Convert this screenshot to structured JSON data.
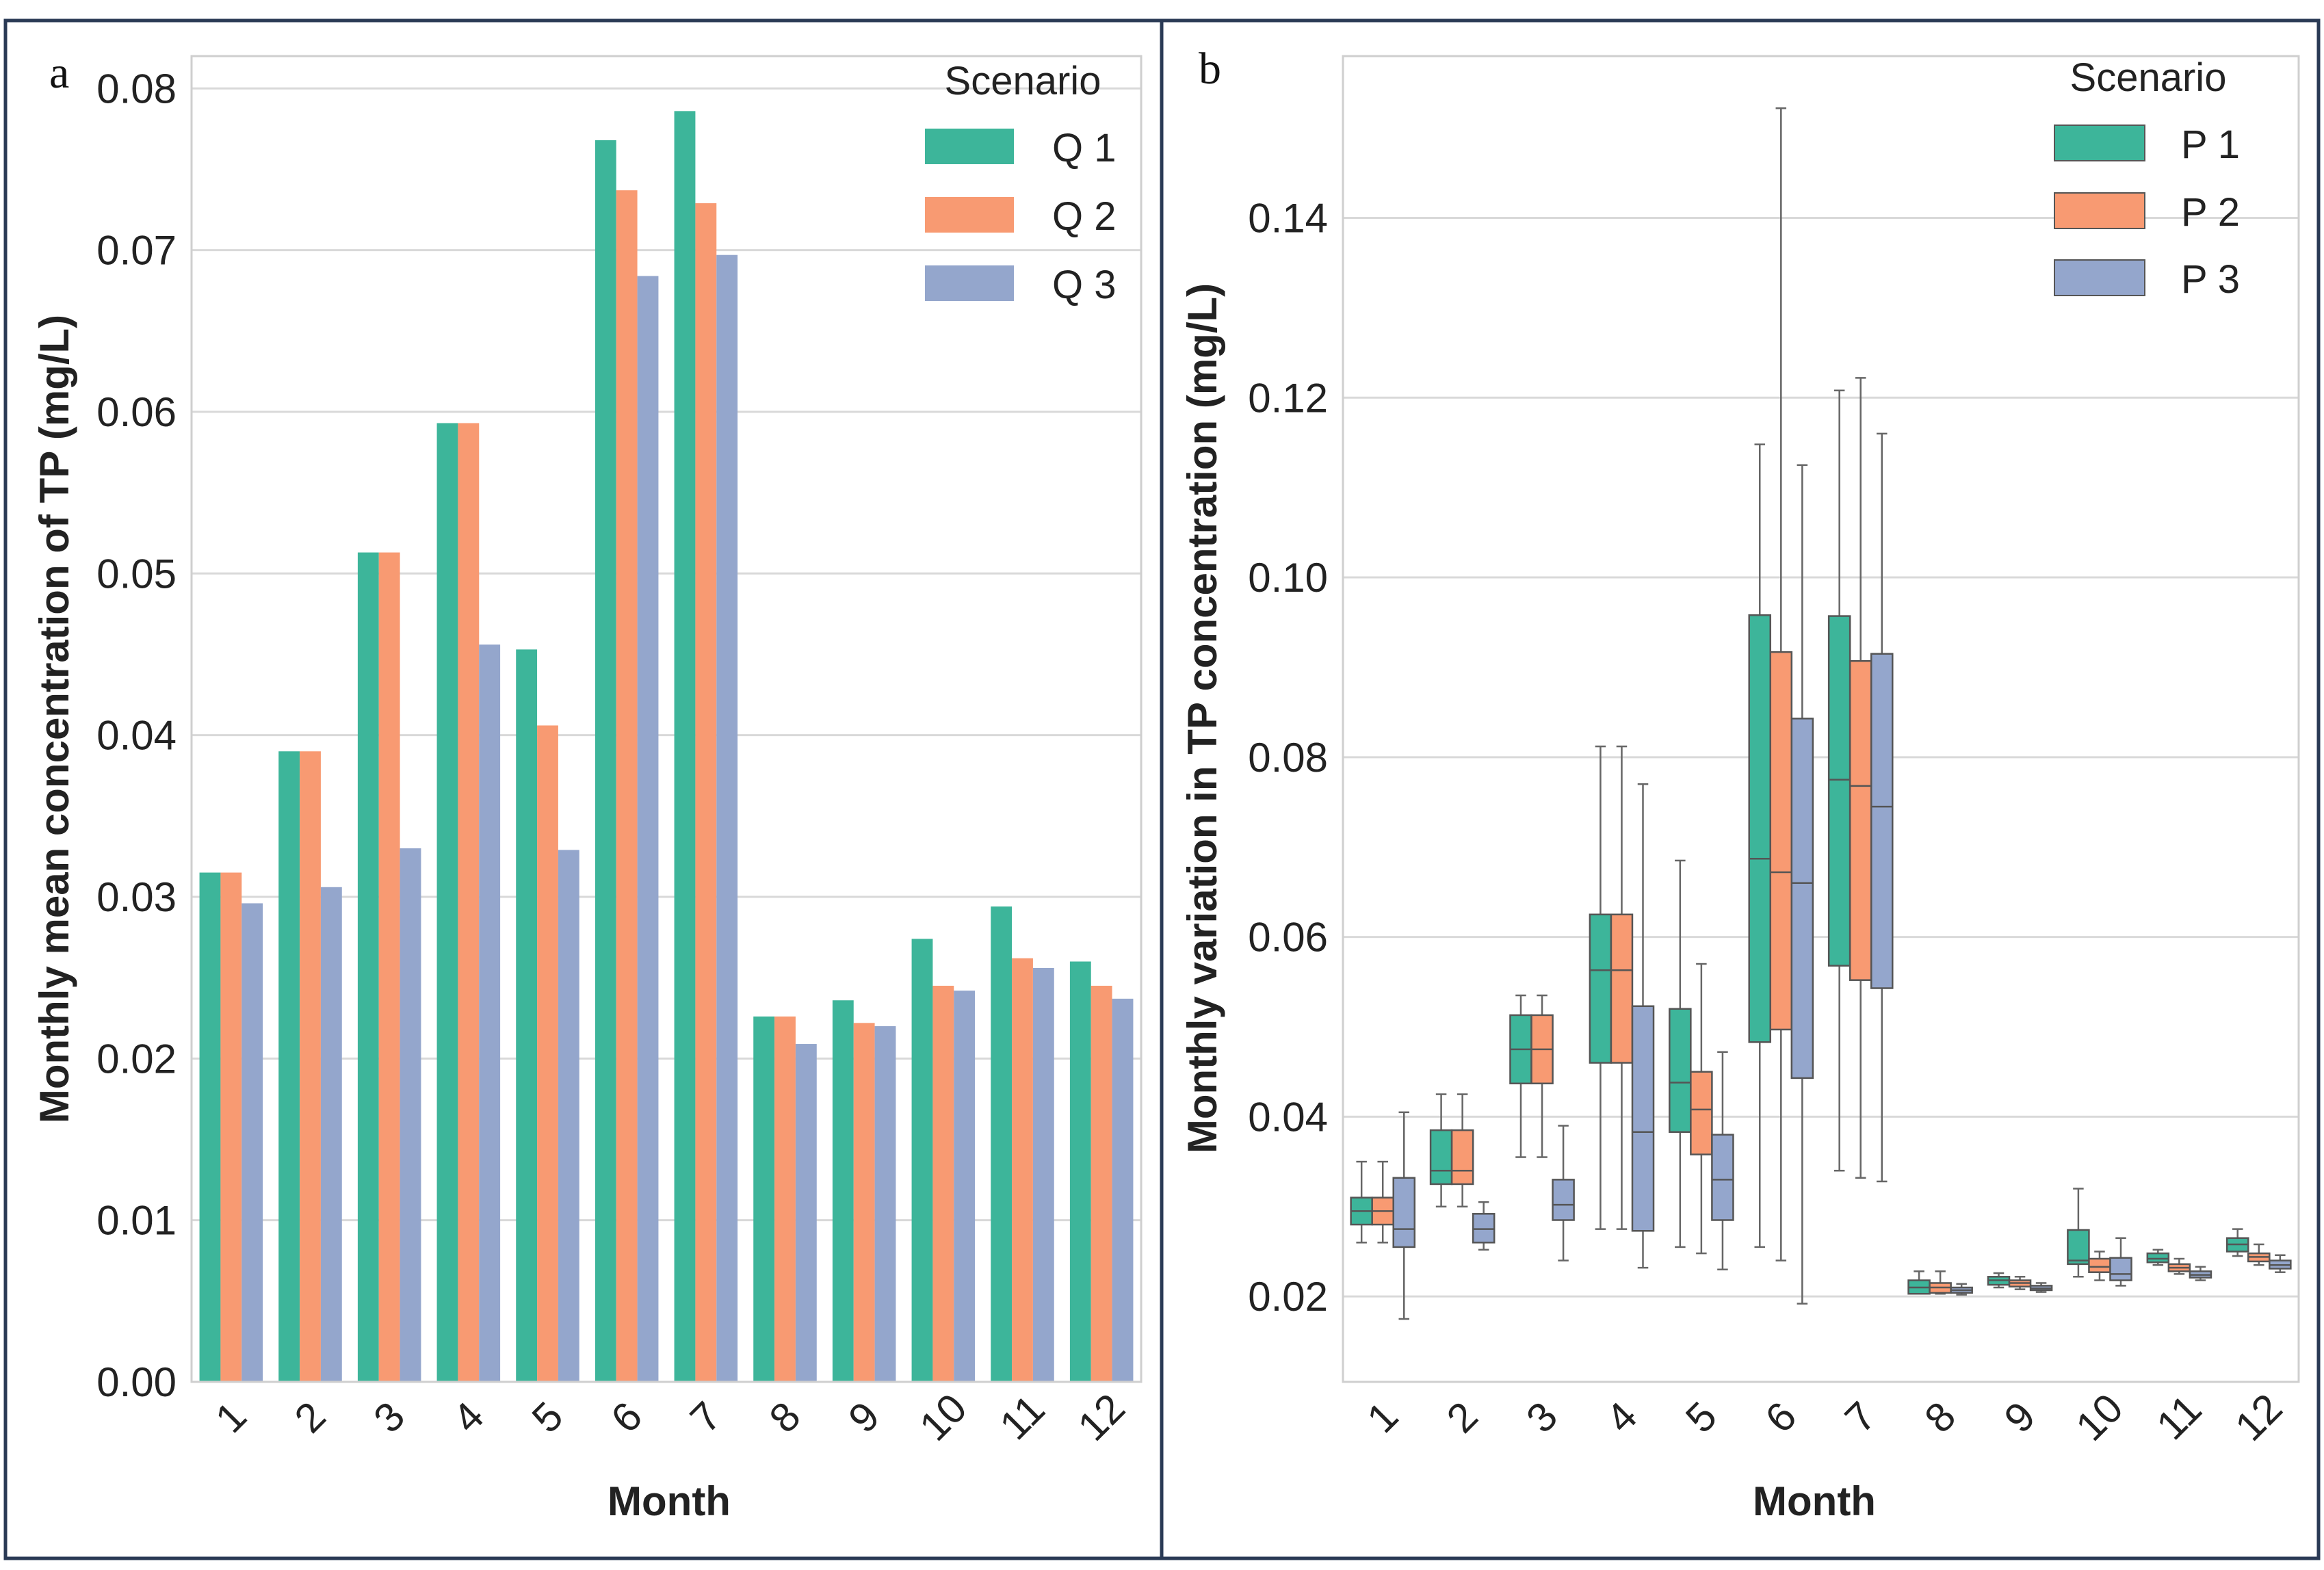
{
  "colors": {
    "s1": "#3db59a",
    "s2": "#f89a72",
    "s3": "#94a6cc",
    "grid": "#d9d9d9",
    "border": "#2a3a55"
  },
  "chart_data": [
    {
      "panel_label": "a",
      "type": "bar",
      "categories": [
        "1",
        "2",
        "3",
        "4",
        "5",
        "6",
        "7",
        "8",
        "9",
        "10",
        "11",
        "12"
      ],
      "series": [
        {
          "name": "Q 1",
          "values": [
            0.0315,
            0.039,
            0.0513,
            0.0593,
            0.0453,
            0.0768,
            0.0786,
            0.0226,
            0.0236,
            0.0274,
            0.0294,
            0.026
          ]
        },
        {
          "name": "Q 2",
          "values": [
            0.0315,
            0.039,
            0.0513,
            0.0593,
            0.0406,
            0.0737,
            0.0729,
            0.0226,
            0.0222,
            0.0245,
            0.0262,
            0.0245
          ]
        },
        {
          "name": "Q 3",
          "values": [
            0.0296,
            0.0306,
            0.033,
            0.0456,
            0.0329,
            0.0684,
            0.0697,
            0.0209,
            0.022,
            0.0242,
            0.0256,
            0.0237
          ]
        }
      ],
      "ylim": [
        0,
        0.082
      ],
      "yticks": [
        "0.00",
        "0.01",
        "0.02",
        "0.03",
        "0.04",
        "0.05",
        "0.06",
        "0.07",
        "0.08"
      ],
      "xlabel": "Month",
      "ylabel": "Monthly mean concentration of TP (mg/L)",
      "legend_title": "Scenario",
      "legend_position": "top-right",
      "grid": "horizontal"
    },
    {
      "panel_label": "b",
      "type": "box",
      "categories": [
        "1",
        "2",
        "3",
        "4",
        "5",
        "6",
        "7",
        "8",
        "9",
        "10",
        "11",
        "12"
      ],
      "series": [
        {
          "name": "P 1",
          "boxes": [
            [
              0.026,
              0.028,
              0.0295,
              0.031,
              0.035
            ],
            [
              0.03,
              0.0325,
              0.034,
              0.0385,
              0.0425
            ],
            [
              0.0355,
              0.0437,
              0.0475,
              0.0513,
              0.0535
            ],
            [
              0.0275,
              0.046,
              0.0563,
              0.0625,
              0.0812
            ],
            [
              0.0255,
              0.0383,
              0.0438,
              0.052,
              0.0685
            ],
            [
              0.0255,
              0.0483,
              0.0687,
              0.0958,
              0.1148
            ],
            [
              0.034,
              0.0568,
              0.0775,
              0.0957,
              0.1208
            ],
            [
              0.0205,
              0.0203,
              0.021,
              0.0218,
              0.0228
            ],
            [
              0.021,
              0.0213,
              0.0218,
              0.0222,
              0.0226
            ],
            [
              0.0222,
              0.0236,
              0.024,
              0.0274,
              0.032
            ],
            [
              0.0235,
              0.0238,
              0.0242,
              0.0248,
              0.0252
            ],
            [
              0.0245,
              0.025,
              0.0258,
              0.0265,
              0.0275
            ]
          ]
        },
        {
          "name": "P 2",
          "boxes": [
            [
              0.026,
              0.028,
              0.0295,
              0.031,
              0.035
            ],
            [
              0.03,
              0.0325,
              0.034,
              0.0385,
              0.0425
            ],
            [
              0.0355,
              0.0437,
              0.0475,
              0.0513,
              0.0535
            ],
            [
              0.0275,
              0.046,
              0.0563,
              0.0625,
              0.0812
            ],
            [
              0.0248,
              0.0358,
              0.0408,
              0.045,
              0.057
            ],
            [
              0.024,
              0.0497,
              0.0672,
              0.0917,
              0.1522
            ],
            [
              0.0332,
              0.0552,
              0.0768,
              0.0907,
              0.1222
            ],
            [
              0.0203,
              0.0204,
              0.021,
              0.0215,
              0.0228
            ],
            [
              0.0208,
              0.0211,
              0.0215,
              0.0218,
              0.0222
            ],
            [
              0.0218,
              0.0227,
              0.0233,
              0.0242,
              0.025
            ],
            [
              0.0225,
              0.0228,
              0.0232,
              0.0236,
              0.0242
            ],
            [
              0.0235,
              0.0239,
              0.0244,
              0.0248,
              0.0258
            ]
          ]
        },
        {
          "name": "P 3",
          "boxes": [
            [
              0.0175,
              0.0255,
              0.0275,
              0.0332,
              0.0405
            ],
            [
              0.0252,
              0.026,
              0.0275,
              0.0292,
              0.0305
            ],
            [
              0.024,
              0.0285,
              0.0302,
              0.033,
              0.039
            ],
            [
              0.0232,
              0.0273,
              0.0383,
              0.0523,
              0.077
            ],
            [
              0.023,
              0.0285,
              0.033,
              0.038,
              0.0472
            ],
            [
              0.0192,
              0.0443,
              0.066,
              0.0843,
              0.1125
            ],
            [
              0.0328,
              0.0543,
              0.0745,
              0.0915,
              0.116
            ],
            [
              0.0202,
              0.0204,
              0.0207,
              0.021,
              0.0214
            ],
            [
              0.0205,
              0.0207,
              0.0209,
              0.0212,
              0.0215
            ],
            [
              0.0212,
              0.0218,
              0.0225,
              0.0243,
              0.0265
            ],
            [
              0.0218,
              0.0221,
              0.0224,
              0.0228,
              0.0233
            ],
            [
              0.0227,
              0.0231,
              0.0235,
              0.024,
              0.0246
            ]
          ]
        }
      ],
      "ylim": [
        0.0105,
        0.158
      ],
      "yticks": [
        "0.02",
        "0.04",
        "0.06",
        "0.08",
        "0.10",
        "0.12",
        "0.14"
      ],
      "xlabel": "Month",
      "ylabel": "Monthly variation in TP concentration (mg/L)",
      "legend_title": "Scenario",
      "legend_position": "top-right",
      "grid": "horizontal"
    }
  ]
}
